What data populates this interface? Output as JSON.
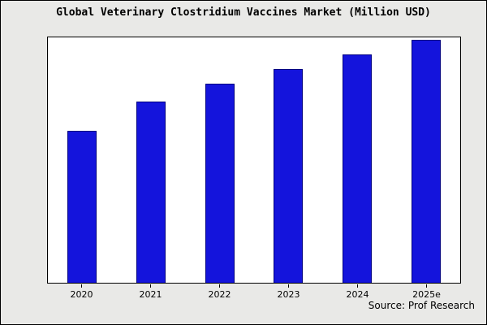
{
  "title": "Global Veterinary Clostridium Vaccines Market (Million USD)",
  "source": "Source: Prof Research",
  "colors": {
    "bar_fill": "#1414dc",
    "bar_edge": "#000080",
    "page_bg": "#e9e9e7",
    "plot_bg": "#ffffff"
  },
  "chart_data": {
    "type": "bar",
    "categories": [
      "2020",
      "2021",
      "2022",
      "2023",
      "2024",
      "2025e"
    ],
    "values": [
      62,
      74,
      81,
      87,
      93,
      99
    ],
    "title": "Global Veterinary Clostridium Vaccines Market (Million USD)",
    "xlabel": "",
    "ylabel": "",
    "ylim": [
      0,
      100
    ],
    "grid": false,
    "legend": false,
    "annotation": "Source: Prof Research"
  }
}
